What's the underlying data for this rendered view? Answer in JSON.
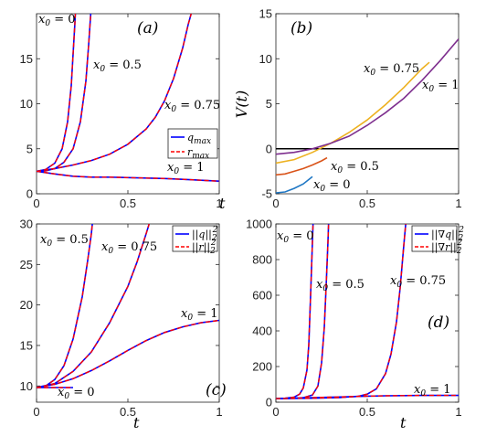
{
  "chart_data": [
    {
      "type": "line",
      "panel_label": "(a)",
      "xlabel": "t",
      "ylabel": "",
      "xlim": [
        0,
        1
      ],
      "ylim": [
        0,
        20
      ],
      "xticks": [
        0,
        0.5,
        1
      ],
      "yticks": [
        0,
        5,
        10,
        15
      ],
      "xtick_labels": [
        "0",
        "0.5",
        "1"
      ],
      "ytick_labels": [
        "0",
        "5",
        "10",
        "15"
      ],
      "legend": {
        "position": "right-middle",
        "entries": [
          {
            "label_main": "q",
            "label_sub": "max",
            "color": "#0000ff",
            "dash": "solid"
          },
          {
            "label_main": "r",
            "label_sub": "max",
            "color": "#ff0000",
            "dash": "dashed"
          }
        ]
      },
      "annotations": [
        {
          "text": "x",
          "sub": "0",
          "rest": " = 0"
        },
        {
          "text": "x",
          "sub": "0",
          "rest": " = 0.5"
        },
        {
          "text": "x",
          "sub": "0",
          "rest": " = 0.75"
        },
        {
          "text": "x",
          "sub": "0",
          "rest": " = 1"
        }
      ],
      "series": [
        {
          "x0": "0",
          "x": [
            0,
            0.05,
            0.1,
            0.14,
            0.17,
            0.19,
            0.2,
            0.21,
            0.215
          ],
          "y": [
            2.5,
            2.7,
            3.4,
            5.0,
            8.0,
            12.0,
            15.5,
            19.0,
            21
          ]
        },
        {
          "x0": "0.5",
          "x": [
            0,
            0.05,
            0.1,
            0.15,
            0.2,
            0.24,
            0.27,
            0.285,
            0.3
          ],
          "y": [
            2.5,
            2.55,
            2.8,
            3.5,
            5.0,
            8.0,
            12.5,
            16.5,
            21
          ]
        },
        {
          "x0": "0.75",
          "x": [
            0,
            0.1,
            0.2,
            0.3,
            0.4,
            0.5,
            0.6,
            0.65,
            0.7,
            0.75,
            0.8,
            0.83,
            0.86
          ],
          "y": [
            2.5,
            2.8,
            3.2,
            3.7,
            4.4,
            5.5,
            7.2,
            8.5,
            10.3,
            12.8,
            16.2,
            18.8,
            21
          ]
        },
        {
          "x0": "1",
          "x": [
            0,
            0.1,
            0.2,
            0.3,
            0.4,
            0.5,
            0.6,
            0.7,
            0.8,
            0.9,
            1.0
          ],
          "y": [
            2.5,
            2.2,
            1.95,
            1.85,
            1.85,
            1.8,
            1.75,
            1.7,
            1.6,
            1.5,
            1.4
          ]
        }
      ]
    },
    {
      "type": "line",
      "panel_label": "(b)",
      "xlabel": "",
      "ylabel": "V(t)",
      "xlim": [
        0,
        1
      ],
      "ylim": [
        -5,
        15
      ],
      "xticks": [
        0,
        0.5,
        1
      ],
      "yticks": [
        -5,
        0,
        5,
        10,
        15
      ],
      "xtick_labels": [
        "0",
        "0.5",
        "1"
      ],
      "ytick_labels": [
        "-5",
        "0",
        "5",
        "10",
        "15"
      ],
      "zero_line": true,
      "annotations": [
        {
          "text": "x",
          "sub": "0",
          "rest": " = 0.75"
        },
        {
          "text": "x",
          "sub": "0",
          "rest": " = 1"
        },
        {
          "text": "x",
          "sub": "0",
          "rest": " = 0.5"
        },
        {
          "text": "x",
          "sub": "0",
          "rest": " = 0"
        }
      ],
      "series": [
        {
          "x0": "0",
          "color": "#1f77c4",
          "x": [
            0,
            0.05,
            0.1,
            0.15,
            0.2
          ],
          "y": [
            -4.9,
            -4.8,
            -4.4,
            -3.9,
            -3.1
          ]
        },
        {
          "x0": "0.5",
          "color": "#d95319",
          "x": [
            0,
            0.05,
            0.1,
            0.15,
            0.2,
            0.25,
            0.28
          ],
          "y": [
            -2.9,
            -2.8,
            -2.5,
            -2.2,
            -1.8,
            -1.35,
            -1.0
          ]
        },
        {
          "x0": "0.75",
          "color": "#edb120",
          "x": [
            0,
            0.1,
            0.2,
            0.3,
            0.4,
            0.5,
            0.6,
            0.7,
            0.8,
            0.84
          ],
          "y": [
            -1.6,
            -1.2,
            -0.4,
            0.6,
            1.8,
            3.2,
            4.9,
            6.8,
            8.9,
            9.6
          ]
        },
        {
          "x0": "1",
          "color": "#7e2f8e",
          "x": [
            0,
            0.1,
            0.2,
            0.3,
            0.4,
            0.5,
            0.6,
            0.7,
            0.8,
            0.9,
            1.0
          ],
          "y": [
            -0.6,
            -0.4,
            0.0,
            0.6,
            1.4,
            2.6,
            4.0,
            5.6,
            7.6,
            9.8,
            12.2
          ]
        }
      ]
    },
    {
      "type": "line",
      "panel_label": "(c)",
      "xlabel": "t",
      "ylabel": "",
      "xlim": [
        0,
        1
      ],
      "ylim": [
        8,
        30
      ],
      "xticks": [
        0,
        0.5,
        1
      ],
      "yticks": [
        10,
        15,
        20,
        25,
        30
      ],
      "xtick_labels": [
        "0",
        "0.5",
        "1"
      ],
      "ytick_labels": [
        "10",
        "15",
        "20",
        "25",
        "30"
      ],
      "legend": {
        "position": "top-right",
        "entries": [
          {
            "label_main": "||q||",
            "label_sub": "2",
            "label_sup": "2",
            "color": "#0000ff",
            "dash": "solid"
          },
          {
            "label_main": "||r||",
            "label_sub": "2",
            "label_sup": "2",
            "color": "#ff0000",
            "dash": "dashed"
          }
        ]
      },
      "annotations": [
        {
          "text": "x",
          "sub": "0",
          "rest": " = 0.5"
        },
        {
          "text": "x",
          "sub": "0",
          "rest": " = 0.75"
        },
        {
          "text": "x",
          "sub": "0",
          "rest": " = 1"
        },
        {
          "text": "x",
          "sub": "0",
          "rest": " = 0"
        }
      ],
      "series": [
        {
          "x0": "0",
          "x": [
            0,
            0.05,
            0.1,
            0.15,
            0.2
          ],
          "y": [
            9.8,
            9.8,
            9.8,
            9.8,
            9.8
          ]
        },
        {
          "x0": "0.5",
          "x": [
            0,
            0.05,
            0.1,
            0.15,
            0.2,
            0.25,
            0.28,
            0.3,
            0.31
          ],
          "y": [
            9.8,
            10.0,
            10.8,
            12.5,
            15.8,
            21.0,
            25.5,
            28.8,
            31
          ]
        },
        {
          "x0": "0.75",
          "x": [
            0,
            0.1,
            0.2,
            0.3,
            0.4,
            0.5,
            0.55,
            0.6,
            0.63
          ],
          "y": [
            9.8,
            10.3,
            11.8,
            14.2,
            17.8,
            22.3,
            25.3,
            28.8,
            31
          ]
        },
        {
          "x0": "1",
          "x": [
            0,
            0.1,
            0.2,
            0.3,
            0.4,
            0.5,
            0.6,
            0.7,
            0.8,
            0.9,
            1.0
          ],
          "y": [
            9.8,
            10.2,
            10.9,
            11.9,
            13.1,
            14.4,
            15.6,
            16.6,
            17.3,
            17.8,
            18.1
          ]
        }
      ]
    },
    {
      "type": "line",
      "panel_label": "(d)",
      "xlabel": "t",
      "ylabel": "",
      "xlim": [
        0,
        1
      ],
      "ylim": [
        0,
        1000
      ],
      "xticks": [
        0,
        0.5,
        1
      ],
      "yticks": [
        0,
        200,
        400,
        600,
        800,
        1000
      ],
      "xtick_labels": [
        "0",
        "0.5",
        "1"
      ],
      "ytick_labels": [
        "0",
        "200",
        "400",
        "600",
        "800",
        "1000"
      ],
      "legend": {
        "position": "top-right",
        "entries": [
          {
            "label_main": "||∇q||",
            "label_sub": "2",
            "label_sup": "2",
            "color": "#0000ff",
            "dash": "solid"
          },
          {
            "label_main": "||∇r||",
            "label_sub": "2",
            "label_sup": "2",
            "color": "#ff0000",
            "dash": "dashed"
          }
        ]
      },
      "annotations": [
        {
          "text": "x",
          "sub": "0",
          "rest": " = 0"
        },
        {
          "text": "x",
          "sub": "0",
          "rest": " = 0.5"
        },
        {
          "text": "x",
          "sub": "0",
          "rest": " = 0.75"
        },
        {
          "text": "x",
          "sub": "0",
          "rest": " = 1"
        }
      ],
      "series": [
        {
          "x0": "0",
          "x": [
            0,
            0.05,
            0.1,
            0.13,
            0.15,
            0.17,
            0.18,
            0.19,
            0.2,
            0.205
          ],
          "y": [
            20,
            22,
            28,
            45,
            80,
            180,
            320,
            600,
            900,
            1050
          ]
        },
        {
          "x0": "0.5",
          "x": [
            0,
            0.1,
            0.15,
            0.2,
            0.23,
            0.25,
            0.265,
            0.275,
            0.285,
            0.29
          ],
          "y": [
            20,
            22,
            25,
            40,
            90,
            220,
            420,
            650,
            900,
            1050
          ]
        },
        {
          "x0": "0.75",
          "x": [
            0,
            0.2,
            0.35,
            0.45,
            0.5,
            0.55,
            0.6,
            0.63,
            0.66,
            0.68,
            0.7,
            0.715
          ],
          "y": [
            20,
            22,
            26,
            33,
            45,
            75,
            160,
            270,
            450,
            640,
            880,
            1050
          ]
        },
        {
          "x0": "1",
          "x": [
            0,
            0.1,
            0.2,
            0.3,
            0.4,
            0.5,
            0.6,
            0.7,
            0.8,
            0.9,
            1.0
          ],
          "y": [
            20,
            22,
            25,
            28,
            31,
            34,
            36,
            37,
            38,
            38,
            38
          ]
        }
      ]
    }
  ]
}
